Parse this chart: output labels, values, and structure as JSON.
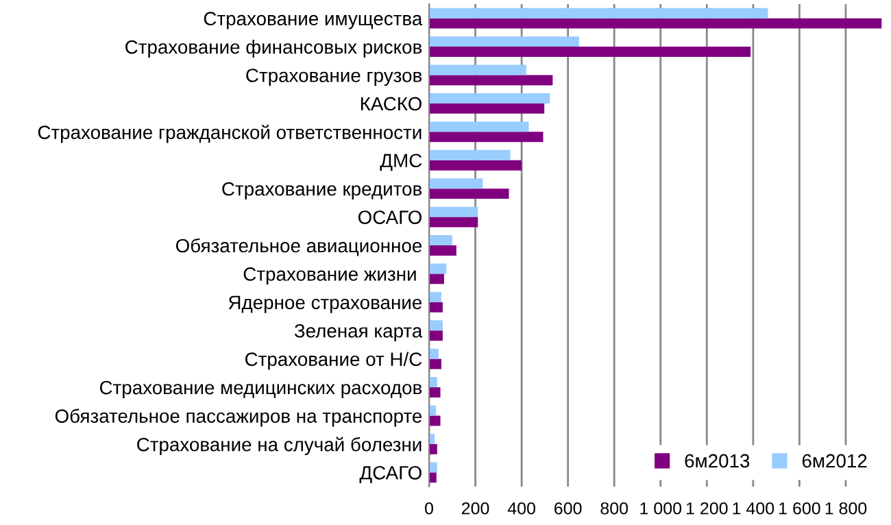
{
  "chart_data": {
    "type": "bar",
    "orientation": "horizontal",
    "categories": [
      "Страхование имущества",
      "Страхование финансовых рисков",
      "Страхование грузов",
      "КАСКО",
      "Страхование гражданской ответственности",
      "ДМС",
      "Страхование кредитов",
      "ОСАГО",
      "Обязательное авиационное",
      "Страхование жизни ",
      "Ядерное страхование",
      "Зеленая карта",
      "Страхование от Н/С",
      "Страхование медицинских расходов",
      "Обязательное пассажиров на транспорте",
      "Страхование на случай болезни",
      "ДСАГО"
    ],
    "series": [
      {
        "name": "6м2013",
        "color": "#800080",
        "values": [
          1955,
          1389,
          534,
          498,
          493,
          400,
          345,
          211,
          118,
          65,
          59,
          59,
          53,
          49,
          49,
          35,
          32
        ]
      },
      {
        "name": "6м2012",
        "color": "#99ccff",
        "values": [
          1464,
          648,
          420,
          522,
          431,
          351,
          232,
          211,
          100,
          75,
          53,
          59,
          41,
          35,
          30,
          24,
          35
        ]
      }
    ],
    "xlim": [
      0,
      1960
    ],
    "xticks": [
      0,
      200,
      400,
      600,
      800,
      {
        "value": 1000,
        "label": "1 000"
      },
      {
        "value": 1200,
        "label": "1 200"
      },
      {
        "value": 1400,
        "label": "1 400"
      },
      {
        "value": 1600,
        "label": "1 600"
      },
      {
        "value": 1800,
        "label": "1 800"
      }
    ],
    "grid": "x",
    "legend": "bottom right"
  }
}
